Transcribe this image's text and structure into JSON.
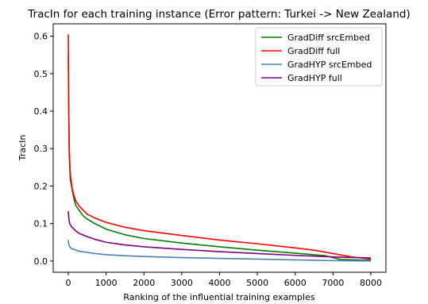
{
  "chart_data": {
    "type": "line",
    "title": "TracIn for each training instance (Error pattern: Turkei -> New Zealand)",
    "xlabel": "Ranking of the influential training examples",
    "ylabel": "TracIn",
    "xlim": [
      -400,
      8400
    ],
    "ylim": [
      -0.03,
      0.633
    ],
    "xticks": [
      0,
      1000,
      2000,
      3000,
      4000,
      5000,
      6000,
      7000,
      8000
    ],
    "yticks": [
      0.0,
      0.1,
      0.2,
      0.3,
      0.4,
      0.5,
      0.6
    ],
    "grid": false,
    "legend": "top-right",
    "series": [
      {
        "name": "GradDiff srcEmbed",
        "color": "#008000",
        "x": [
          0,
          10,
          25,
          50,
          100,
          150,
          200,
          300,
          400,
          500,
          700,
          1000,
          1500,
          2000,
          3000,
          4000,
          5000,
          6000,
          6800,
          7000,
          7200,
          8000
        ],
        "y": [
          0.55,
          0.4,
          0.28,
          0.22,
          0.19,
          0.165,
          0.148,
          0.133,
          0.12,
          0.112,
          0.1,
          0.085,
          0.07,
          0.06,
          0.048,
          0.038,
          0.029,
          0.021,
          0.014,
          0.009,
          0.004,
          0.002
        ]
      },
      {
        "name": "GradDiff full",
        "color": "#ff0000",
        "x": [
          0,
          10,
          25,
          50,
          100,
          150,
          200,
          300,
          400,
          500,
          700,
          1000,
          1500,
          2000,
          3000,
          4000,
          5000,
          6000,
          6500,
          7000,
          7500,
          8000
        ],
        "y": [
          0.605,
          0.42,
          0.3,
          0.235,
          0.195,
          0.175,
          0.16,
          0.145,
          0.135,
          0.125,
          0.115,
          0.103,
          0.09,
          0.081,
          0.068,
          0.056,
          0.046,
          0.035,
          0.029,
          0.02,
          0.011,
          0.005
        ]
      },
      {
        "name": "GradHYP srcEmbed",
        "color": "#4682b4",
        "x": [
          0,
          10,
          25,
          50,
          100,
          200,
          300,
          500,
          700,
          1000,
          1500,
          2000,
          3000,
          4000,
          5000,
          6000,
          7000,
          8000
        ],
        "y": [
          0.056,
          0.046,
          0.04,
          0.036,
          0.033,
          0.029,
          0.026,
          0.023,
          0.02,
          0.017,
          0.014,
          0.012,
          0.009,
          0.007,
          0.005,
          0.003,
          0.001,
          0.0
        ]
      },
      {
        "name": "GradHYP full",
        "color": "#800080",
        "x": [
          0,
          10,
          25,
          50,
          100,
          200,
          300,
          400,
          500,
          700,
          1000,
          1500,
          2000,
          3000,
          4000,
          5000,
          6000,
          7000,
          8000
        ],
        "y": [
          0.133,
          0.118,
          0.105,
          0.097,
          0.09,
          0.08,
          0.073,
          0.069,
          0.065,
          0.058,
          0.05,
          0.043,
          0.038,
          0.031,
          0.025,
          0.02,
          0.015,
          0.011,
          0.008
        ]
      }
    ]
  }
}
